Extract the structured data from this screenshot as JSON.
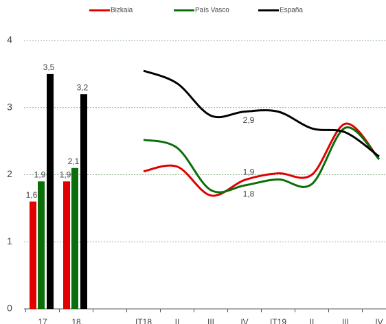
{
  "chart_data": {
    "type": "combo",
    "categories": [
      "17",
      "18",
      null,
      "IT18",
      "II",
      "III",
      "IV",
      "IT19",
      "II",
      "III",
      "IV"
    ],
    "series": [
      {
        "name": "Bizkaia",
        "color": "#e00000",
        "values": [
          1.6,
          1.9,
          null,
          2.05,
          2.12,
          1.69,
          1.92,
          2.02,
          2.0,
          2.76,
          2.23
        ],
        "value_labels": [
          "1,6",
          "1,9",
          null,
          null,
          null,
          null,
          "1,9",
          null,
          null,
          null,
          null
        ]
      },
      {
        "name": "País Vasco",
        "color": "#0a6e0a",
        "values": [
          1.9,
          2.1,
          null,
          2.52,
          2.4,
          1.77,
          1.84,
          1.93,
          1.86,
          2.7,
          2.23
        ],
        "value_labels": [
          "1,9",
          "2,1",
          null,
          null,
          null,
          null,
          "1,8",
          null,
          null,
          null,
          null
        ]
      },
      {
        "name": "España",
        "color": "#000000",
        "values": [
          3.5,
          3.2,
          null,
          3.55,
          3.36,
          2.88,
          2.94,
          2.94,
          2.69,
          2.63,
          2.27
        ],
        "value_labels": [
          "3,5",
          "3,2",
          null,
          null,
          null,
          null,
          "2,9",
          null,
          null,
          null,
          null
        ]
      }
    ],
    "ylim": [
      0,
      4
    ],
    "yticks": [
      0,
      1,
      2,
      3,
      4
    ],
    "grid": true,
    "legend": "top"
  }
}
